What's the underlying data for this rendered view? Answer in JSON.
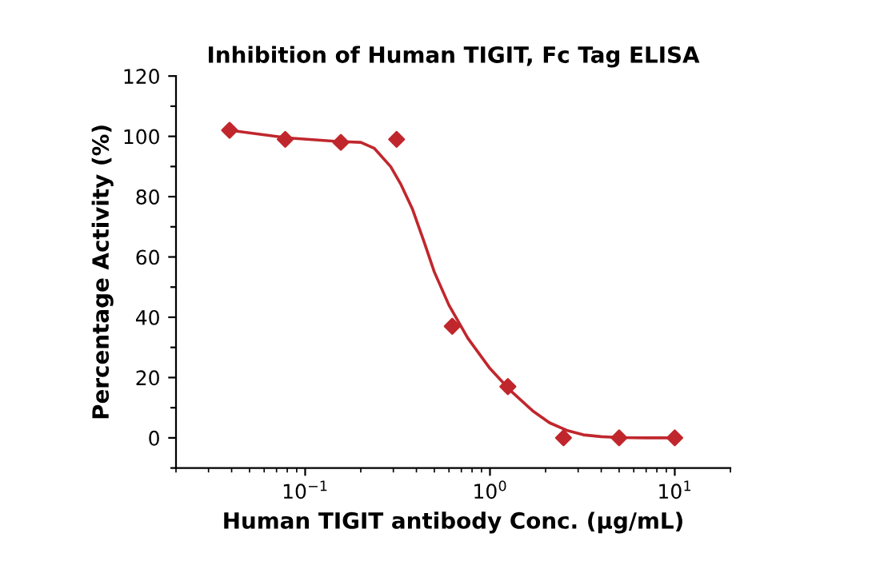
{
  "chart_data": {
    "type": "scatter",
    "title": "Inhibition of Human TIGIT, Fc Tag ELISA",
    "xlabel": "Human TIGIT antibody Conc. (μg/mL)",
    "ylabel": "Percentage Activity (%)",
    "log": "x",
    "grid": false,
    "legend": false,
    "xlim": [
      0.02,
      20
    ],
    "xticks": [
      {
        "value": 0.1,
        "label": "10$^{−1}$"
      },
      {
        "value": 1,
        "label": "10$^{0}$"
      },
      {
        "value": 10,
        "label": "10$^{1}$"
      }
    ],
    "ylim": [
      -10,
      120
    ],
    "yticks": [
      {
        "value": -10,
        "label": null
      },
      0,
      {
        "value": 10,
        "label": null
      },
      20,
      {
        "value": 30,
        "label": null
      },
      40,
      {
        "value": 50,
        "label": null
      },
      60,
      {
        "value": 70,
        "label": null
      },
      80,
      {
        "value": 90,
        "label": null
      },
      100,
      {
        "value": 110,
        "label": null
      },
      120
    ],
    "series": [
      {
        "color": "#c0272d",
        "marker": "diamond",
        "x": [
          0.039,
          0.078,
          0.156,
          0.3125,
          0.625,
          1.25,
          2.5,
          5,
          10
        ],
        "values": [
          102,
          99,
          98,
          99,
          37,
          17,
          0,
          0,
          0
        ]
      },
      {
        "type": "line",
        "color": "#c0272d",
        "marker": "none",
        "line_style": "solid",
        "x": [
          0.039,
          0.08,
          0.15,
          0.2,
          0.237,
          0.29,
          0.33,
          0.38,
          0.44,
          0.5,
          0.6,
          0.76,
          1.0,
          1.3,
          1.7,
          2.1,
          2.6,
          3.2,
          4,
          5,
          7,
          10
        ],
        "values": [
          102,
          99.5,
          98.3,
          98,
          96,
          90,
          84,
          76,
          65,
          55,
          44,
          33,
          23,
          15.5,
          9,
          5,
          2.5,
          1,
          0.4,
          0.1,
          0,
          0
        ]
      }
    ]
  }
}
